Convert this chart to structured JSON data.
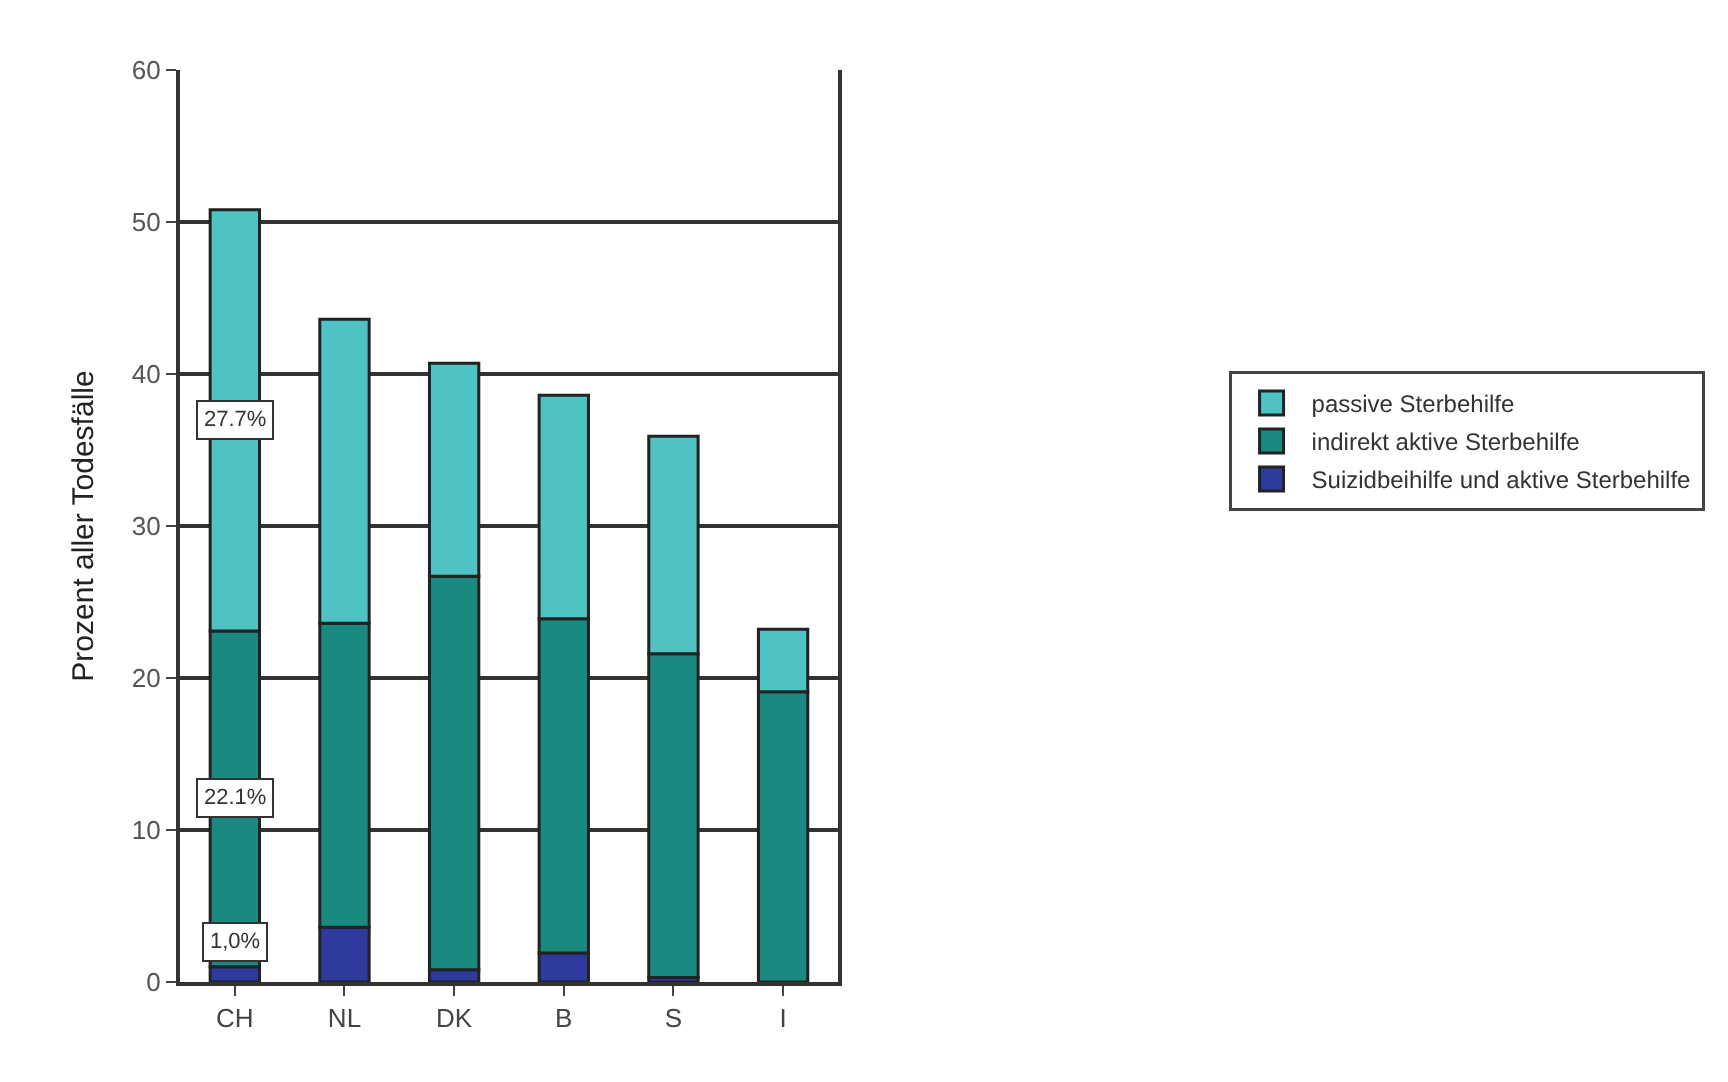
{
  "chart_data": {
    "type": "bar",
    "stacked": true,
    "ylabel": "Prozent aller Todesfälle",
    "categories": [
      "CH",
      "NL",
      "DK",
      "B",
      "S",
      "I"
    ],
    "ylim": [
      0,
      60
    ],
    "yticks": [
      0,
      10,
      20,
      30,
      40,
      50,
      60
    ],
    "grid": "y",
    "legend": "right",
    "series": [
      {
        "name": "Suizidbeihilfe und aktive Sterbehilfe",
        "color": "#2e3a9e",
        "values": [
          1.0,
          3.6,
          0.8,
          1.9,
          0.3,
          0
        ],
        "value_labels": [
          "1,0%",
          null,
          null,
          null,
          null,
          null
        ]
      },
      {
        "name": "indirekt aktive Sterbehilfe",
        "color": "#1a8a80",
        "values": [
          22.1,
          20.0,
          25.9,
          22.0,
          21.3,
          19.1
        ],
        "value_labels": [
          "22.1%",
          null,
          null,
          null,
          null,
          null
        ]
      },
      {
        "name": "passive Sterbehilfe",
        "color": "#4fc3c3",
        "values": [
          27.7,
          20.0,
          14.0,
          14.7,
          14.3,
          4.1
        ],
        "value_labels": [
          "27.7%",
          null,
          null,
          null,
          null,
          null
        ]
      }
    ]
  }
}
